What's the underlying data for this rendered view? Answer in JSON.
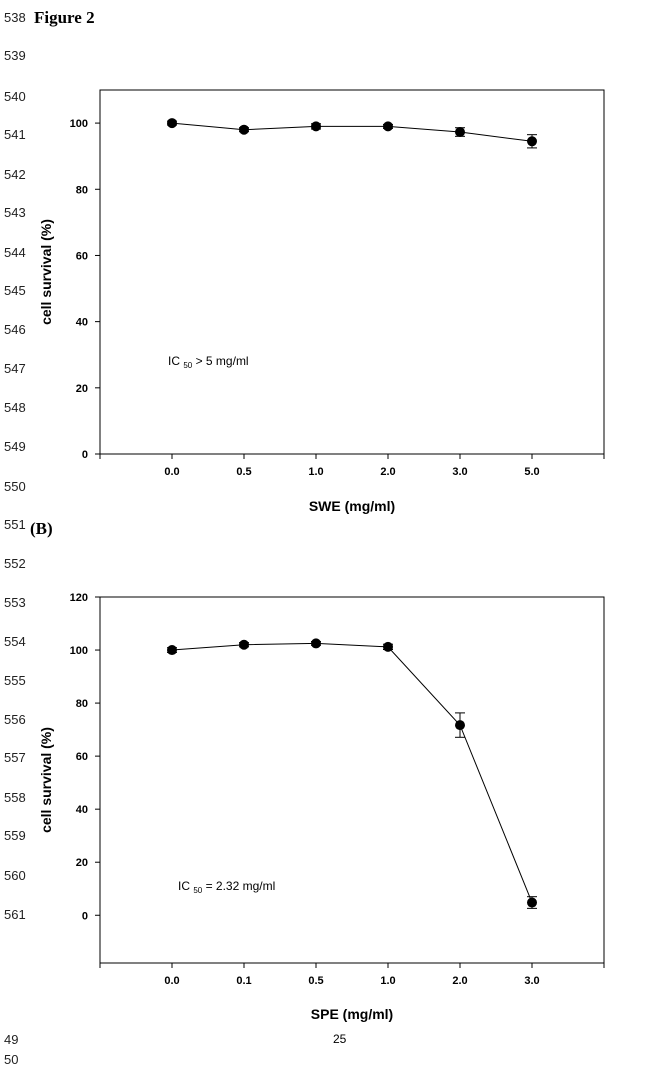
{
  "line_numbers": [
    "538",
    "539",
    "540",
    "541",
    "542",
    "543",
    "544",
    "545",
    "546",
    "547",
    "548",
    "549",
    "550",
    "551",
    "552",
    "553",
    "554",
    "555",
    "556",
    "557",
    "558",
    "559",
    "560",
    "561"
  ],
  "footer_line_numbers": [
    "49",
    "50"
  ],
  "figure_title": "Figure 2",
  "panel_b_label": "(B)",
  "page_number": "25",
  "chart_data": [
    {
      "type": "line",
      "categories": [
        "0.0",
        "0.5",
        "1.0",
        "2.0",
        "3.0",
        "5.0"
      ],
      "series": [
        {
          "values": [
            100,
            98,
            99,
            99,
            97.3,
            94.5
          ],
          "errors": [
            0.6,
            0.6,
            0.8,
            0.6,
            1.3,
            2.0
          ]
        }
      ],
      "xlabel": "SWE (mg/ml)",
      "ylabel": "cell survival (%)",
      "ylim": [
        0,
        110
      ],
      "yticks": [
        0,
        20,
        40,
        60,
        80,
        100
      ],
      "annotation": {
        "prefix": "IC",
        "subscript": "50",
        "suffix": " > 5 mg/ml"
      }
    },
    {
      "type": "line",
      "categories": [
        "0.0",
        "0.1",
        "0.5",
        "1.0",
        "2.0",
        "3.0"
      ],
      "series": [
        {
          "values": [
            100,
            102,
            102.5,
            101.2,
            71.7,
            4.8
          ],
          "errors": [
            0.9,
            0.8,
            0.7,
            1.0,
            4.6,
            2.2
          ]
        }
      ],
      "xlabel": "SPE (mg/ml)",
      "ylabel": "cell survival (%)",
      "ylim": [
        -18,
        120
      ],
      "yticks": [
        0,
        20,
        40,
        60,
        80,
        100,
        120
      ],
      "annotation": {
        "prefix": "IC",
        "subscript": "50",
        "suffix": " = 2.32 mg/ml"
      }
    }
  ]
}
